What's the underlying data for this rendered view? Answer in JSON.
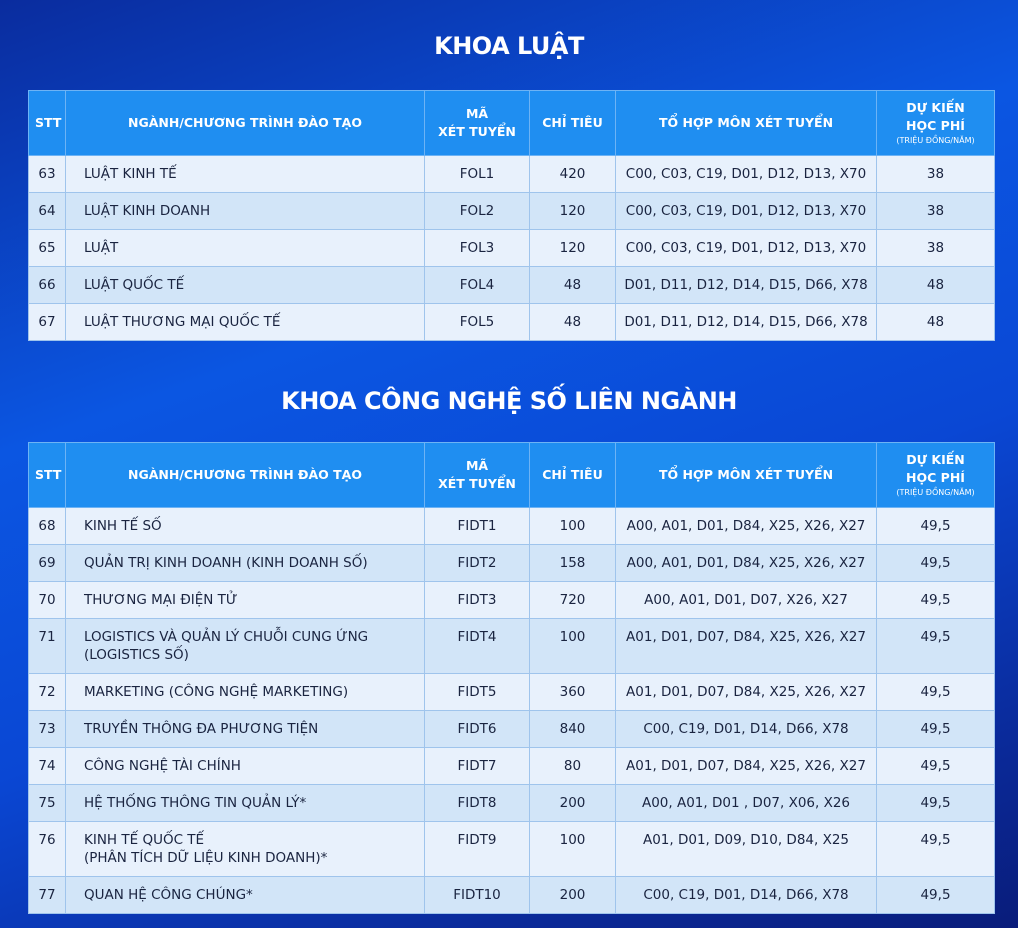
{
  "sections": [
    {
      "title": "KHOA LUẬT",
      "header": [
        [
          "STT"
        ],
        [
          "NGÀNH/CHƯƠNG TRÌNH ĐÀO TẠO"
        ],
        [
          "MÃ",
          "XÉT TUYỂN"
        ],
        [
          "CHỈ TIÊU"
        ],
        [
          "TỔ HỢP MÔN XÉT TUYỂN"
        ],
        [
          "DỰ KIẾN",
          "HỌC PHÍ",
          "(TRIỆU ĐỒNG/NĂM)"
        ]
      ],
      "rows": [
        [
          63,
          [
            "LUẬT KINH TẾ"
          ],
          "FOL1",
          420,
          "C00, C03, C19, D01, D12, D13, X70",
          38
        ],
        [
          64,
          [
            "LUẬT KINH DOANH"
          ],
          "FOL2",
          120,
          "C00, C03, C19, D01, D12, D13, X70",
          38
        ],
        [
          65,
          [
            "LUẬT"
          ],
          "FOL3",
          120,
          "C00, C03, C19, D01, D12, D13, X70",
          38
        ],
        [
          66,
          [
            "LUẬT QUỐC TẾ"
          ],
          "FOL4",
          48,
          "D01, D11, D12, D14, D15, D66, X78",
          48
        ],
        [
          67,
          [
            "LUẬT THƯƠNG MẠI QUỐC TẾ"
          ],
          "FOL5",
          48,
          "D01, D11, D12, D14, D15, D66, X78",
          48
        ]
      ]
    },
    {
      "title": "KHOA CÔNG NGHỆ SỐ LIÊN NGÀNH",
      "header": [
        [
          "STT"
        ],
        [
          "NGÀNH/CHƯƠNG TRÌNH ĐÀO TẠO"
        ],
        [
          "MÃ",
          "XÉT TUYỂN"
        ],
        [
          "CHỈ TIÊU"
        ],
        [
          "TỔ HỢP MÔN XÉT TUYỂN"
        ],
        [
          "DỰ KIẾN",
          "HỌC PHÍ",
          "(TRIỆU ĐỒNG/NĂM)"
        ]
      ],
      "rows": [
        [
          68,
          [
            "KINH TẾ SỐ"
          ],
          "FIDT1",
          100,
          "A00, A01, D01, D84, X25, X26, X27",
          "49,5"
        ],
        [
          69,
          [
            "QUẢN TRỊ KINH DOANH (KINH DOANH SỐ)"
          ],
          "FIDT2",
          158,
          "A00, A01, D01, D84, X25, X26, X27",
          "49,5"
        ],
        [
          70,
          [
            "THƯƠNG MẠI ĐIỆN TỬ"
          ],
          "FIDT3",
          720,
          "A00, A01, D01, D07, X26, X27",
          "49,5"
        ],
        [
          71,
          [
            "LOGISTICS VÀ QUẢN LÝ CHUỖI CUNG ỨNG",
            "(LOGISTICS SỐ)"
          ],
          "FIDT4",
          100,
          "A01, D01, D07, D84, X25, X26, X27",
          "49,5"
        ],
        [
          72,
          [
            "MARKETING (CÔNG NGHỆ MARKETING)"
          ],
          "FIDT5",
          360,
          "A01, D01, D07, D84, X25, X26, X27",
          "49,5"
        ],
        [
          73,
          [
            "TRUYỀN THÔNG ĐA PHƯƠNG TIỆN"
          ],
          "FIDT6",
          840,
          "C00, C19, D01, D14, D66, X78",
          "49,5"
        ],
        [
          74,
          [
            "CÔNG NGHỆ TÀI CHÍNH"
          ],
          "FIDT7",
          80,
          "A01, D01, D07, D84, X25, X26, X27",
          "49,5"
        ],
        [
          75,
          [
            "HỆ THỐNG THÔNG TIN QUẢN LÝ*"
          ],
          "FIDT8",
          200,
          "A00, A01, D01 , D07, X06, X26",
          "49,5"
        ],
        [
          76,
          [
            "KINH TẾ QUỐC TẾ",
            "(PHÂN TÍCH DỮ LIỆU KINH DOANH)*"
          ],
          "FIDT9",
          100,
          "A01, D01, D09, D10, D84, X25",
          "49,5"
        ],
        [
          77,
          [
            "QUAN HỆ CÔNG CHÚNG*"
          ],
          "FIDT10",
          200,
          "C00, C19, D01, D14, D66, X78",
          "49,5"
        ]
      ]
    }
  ]
}
